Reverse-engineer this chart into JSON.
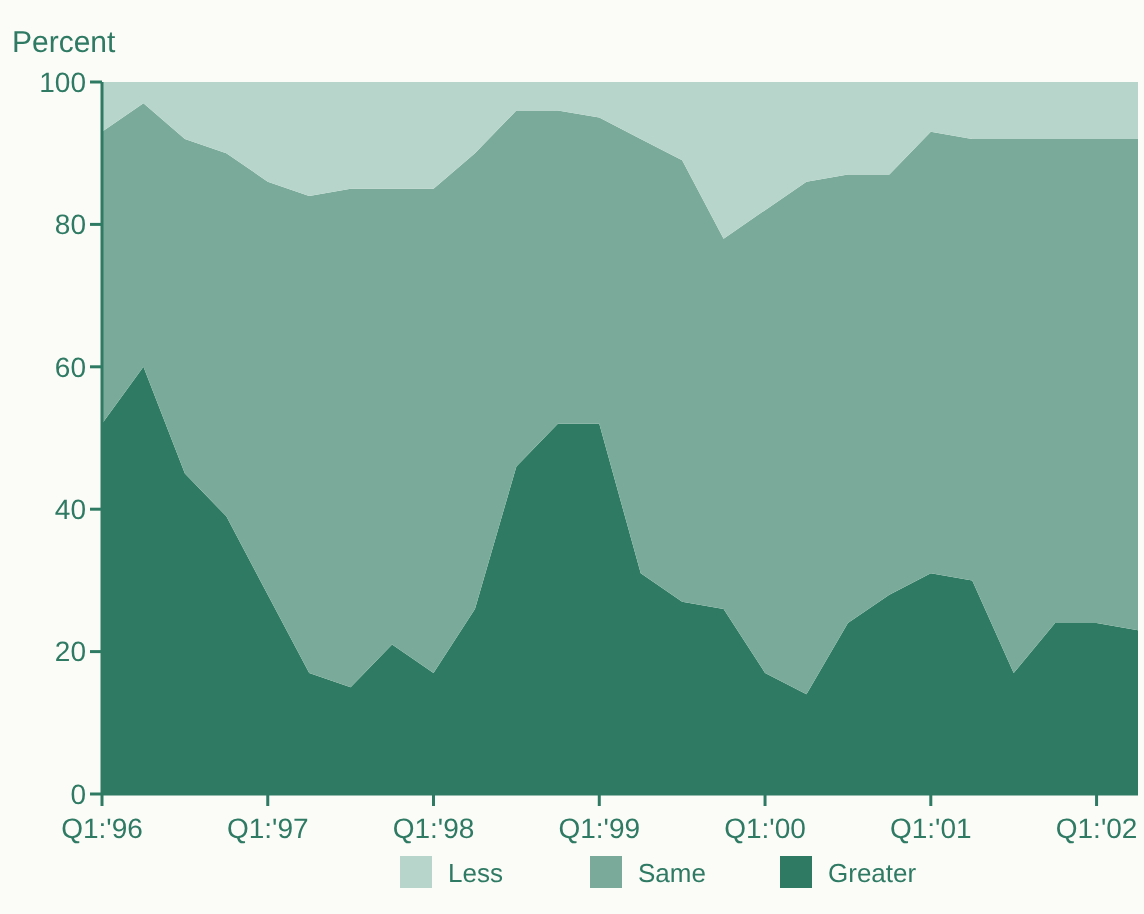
{
  "chart_data": {
    "type": "area",
    "stacked": true,
    "ylabel": "Percent",
    "categories": [
      "Q1:'96",
      null,
      null,
      null,
      "Q1:'97",
      null,
      null,
      null,
      "Q1:'98",
      null,
      null,
      null,
      "Q1:'99",
      null,
      null,
      null,
      "Q1:'00",
      null,
      null,
      null,
      "Q1:'01",
      null,
      null,
      null,
      "Q1:'02",
      null
    ],
    "series": [
      {
        "name": "Greater",
        "color": "#2f7a63",
        "values": [
          52,
          60,
          45,
          39,
          28,
          17,
          15,
          21,
          17,
          26,
          46,
          52,
          52,
          31,
          27,
          26,
          17,
          14,
          24,
          28,
          31,
          30,
          17,
          24,
          24,
          23
        ]
      },
      {
        "name": "Same",
        "color": "#7aab9a",
        "values": [
          41,
          37,
          47,
          51,
          58,
          67,
          70,
          64,
          68,
          64,
          50,
          44,
          43,
          61,
          62,
          52,
          65,
          72,
          63,
          59,
          62,
          62,
          75,
          68,
          68,
          69
        ]
      },
      {
        "name": "Less",
        "color": "#b7d5cb",
        "values": [
          7,
          3,
          8,
          10,
          14,
          16,
          15,
          15,
          15,
          10,
          4,
          4,
          5,
          8,
          11,
          22,
          18,
          14,
          13,
          13,
          7,
          8,
          8,
          8,
          8,
          8
        ]
      }
    ],
    "ylim": [
      0,
      100
    ],
    "yticks": [
      0,
      20,
      40,
      60,
      80,
      100
    ],
    "grid": false,
    "legend": "bottom"
  }
}
